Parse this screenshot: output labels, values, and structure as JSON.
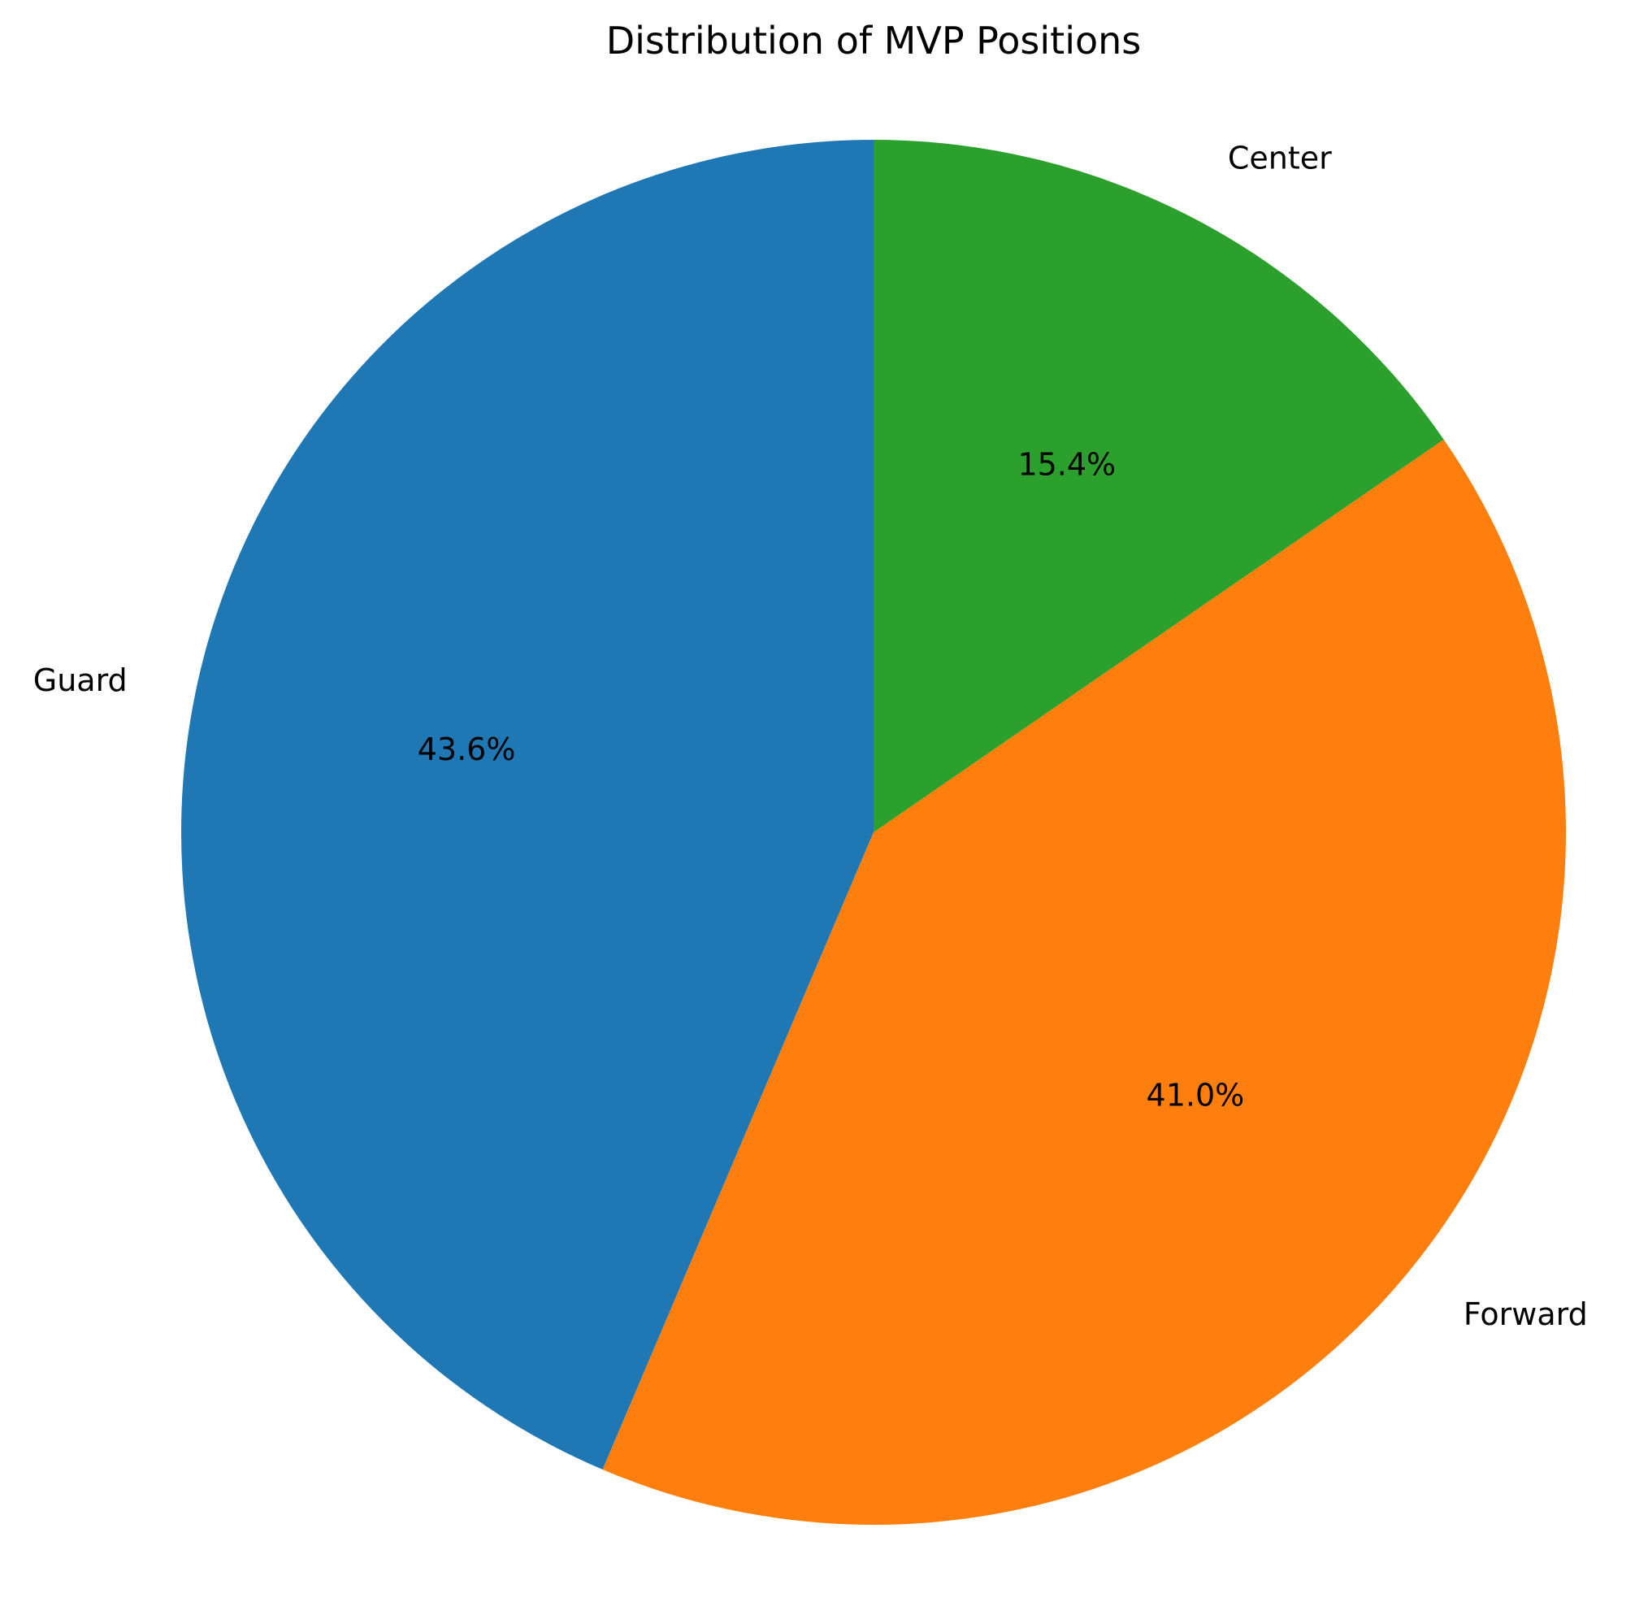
{
  "chart_data": {
    "type": "pie",
    "title": "Distribution of MVP Positions",
    "start_angle_deg": 90,
    "direction": "counterclockwise",
    "slices": [
      {
        "label": "Guard",
        "value": 43.6,
        "pct_label": "43.6%",
        "color": "#1f77b4"
      },
      {
        "label": "Forward",
        "value": 41.0,
        "pct_label": "41.0%",
        "color": "#ff7f0e"
      },
      {
        "label": "Center",
        "value": 15.4,
        "pct_label": "15.4%",
        "color": "#2ca02c"
      }
    ]
  }
}
